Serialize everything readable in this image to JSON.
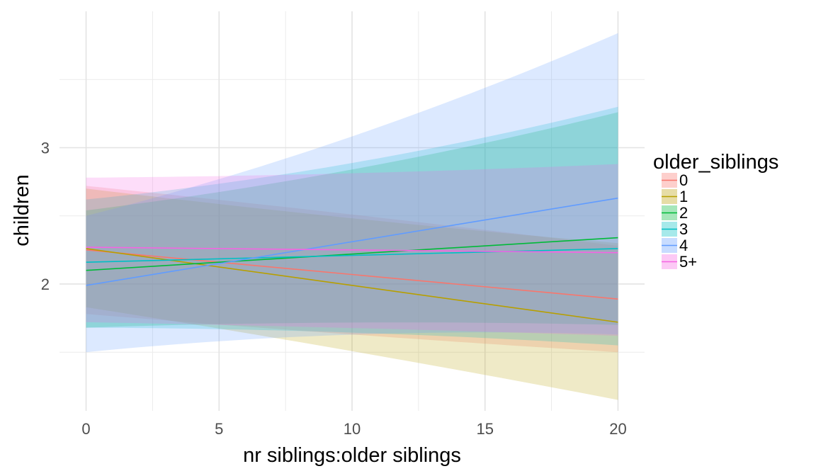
{
  "chart_data": {
    "type": "line",
    "xlabel": "nr siblings:older siblings",
    "ylabel": "children",
    "xlim": [
      -1,
      21
    ],
    "ylim": [
      1.07,
      4.0
    ],
    "x_ticks": [
      0,
      5,
      10,
      15,
      20
    ],
    "y_ticks": [
      2,
      3
    ],
    "grid": true,
    "legend": {
      "title": "older_siblings",
      "position": "right"
    },
    "x": [
      0,
      20
    ],
    "series": [
      {
        "name": "0",
        "color": "#F8766D",
        "values": [
          2.25,
          1.89
        ],
        "lower": [
          1.78,
          1.5
        ],
        "upper": [
          2.72,
          2.28
        ]
      },
      {
        "name": "1",
        "color": "#B79F00",
        "values": [
          2.26,
          1.72
        ],
        "lower": [
          1.83,
          1.15
        ],
        "upper": [
          2.7,
          2.3
        ]
      },
      {
        "name": "2",
        "color": "#00BA38",
        "values": [
          2.1,
          2.34
        ],
        "lower": [
          1.68,
          1.7
        ],
        "upper": [
          2.54,
          3.26
        ]
      },
      {
        "name": "3",
        "color": "#00BFC4",
        "values": [
          2.16,
          2.26
        ],
        "lower": [
          1.68,
          1.55
        ],
        "upper": [
          2.62,
          3.3
        ]
      },
      {
        "name": "4",
        "color": "#619CFF",
        "values": [
          1.99,
          2.63
        ],
        "lower": [
          1.5,
          1.63
        ],
        "upper": [
          2.5,
          3.84
        ]
      },
      {
        "name": "5+",
        "color": "#F564E3",
        "values": [
          2.27,
          2.23
        ],
        "lower": [
          1.72,
          1.62
        ],
        "upper": [
          2.78,
          2.88
        ]
      }
    ]
  }
}
